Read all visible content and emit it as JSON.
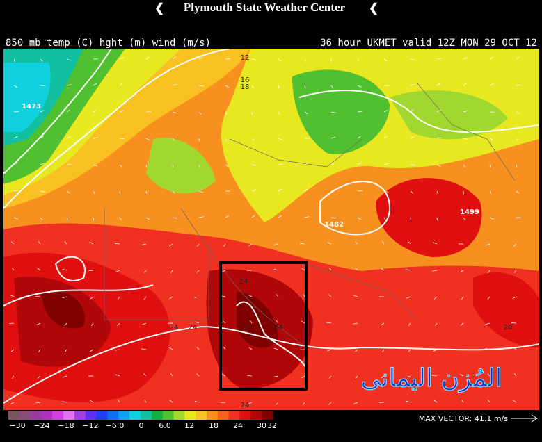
{
  "header": {
    "title": "Plymouth State Weather Center"
  },
  "subtitle_left": "850 mb temp (C) hght (m) wind (m/s)",
  "subtitle_right": "36 hour UKMET valid 12Z MON 29 OCT 12",
  "map_labels": [
    "12",
    "16",
    "18",
    "1473",
    "1482",
    "1499",
    "24",
    "24",
    "24",
    "24",
    "24",
    "20",
    "24"
  ],
  "watermark": "المُزن اليمانى",
  "colorbar": {
    "labels": [
      "−30",
      "−24",
      "−18",
      "−12",
      "−6.0",
      "0",
      "6.0",
      "12",
      "18",
      "24",
      "30",
      "32"
    ],
    "colors": [
      "#7a5560",
      "#8a4a7a",
      "#9a3aa0",
      "#b030c0",
      "#d040e0",
      "#e070f0",
      "#a040e0",
      "#6030f0",
      "#2040f0",
      "#1070f0",
      "#10a0f0",
      "#10d0e0",
      "#10c0a0",
      "#10b040",
      "#50c030",
      "#a0d830",
      "#e8e820",
      "#f8c020",
      "#f89020",
      "#f86020",
      "#f03020",
      "#e01010",
      "#b00808",
      "#800000"
    ]
  },
  "max_vector": "MAX VECTOR:  41.1 m/s"
}
